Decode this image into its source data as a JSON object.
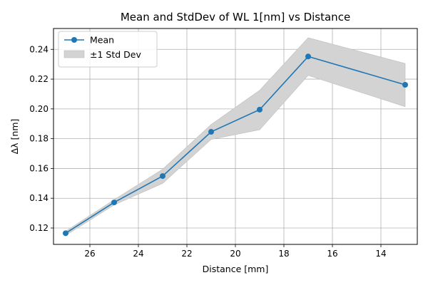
{
  "chart_data": {
    "type": "line",
    "title": "Mean and StdDev of WL 1[nm] vs Distance",
    "xlabel": "Distance [mm]",
    "ylabel": "Δλ [nm]",
    "x_inverted": true,
    "xlim": [
      27.5,
      12.5
    ],
    "ylim": [
      0.109,
      0.254
    ],
    "xticks": [
      26,
      24,
      22,
      20,
      18,
      16,
      14
    ],
    "yticks": [
      0.12,
      0.14,
      0.16,
      0.18,
      0.2,
      0.22,
      0.24
    ],
    "ytick_labels": [
      "0.12",
      "0.14",
      "0.16",
      "0.18",
      "0.20",
      "0.22",
      "0.24"
    ],
    "grid": true,
    "legend_position": "top-left",
    "x": [
      27,
      25,
      23,
      21,
      19,
      17,
      13
    ],
    "series": [
      {
        "name": "Mean",
        "kind": "line-markers",
        "color": "#1f77b4",
        "values": [
          0.1165,
          0.1372,
          0.1549,
          0.1846,
          0.1995,
          0.2352,
          0.2162
        ]
      },
      {
        "name": "±1 Std Dev",
        "kind": "band",
        "color": "#d3d3d3",
        "lower": [
          0.115,
          0.1355,
          0.15,
          0.1795,
          0.186,
          0.2225,
          0.2015
        ],
        "upper": [
          0.1178,
          0.139,
          0.1595,
          0.1895,
          0.2125,
          0.2478,
          0.2305
        ]
      }
    ]
  }
}
